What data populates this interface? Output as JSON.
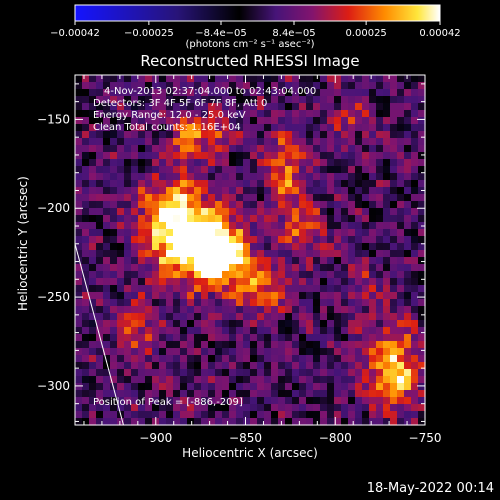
{
  "chart_data": {
    "type": "heatmap",
    "title": "Reconstructed RHESSI Image",
    "xlabel": "Heliocentric X (arcsec)",
    "ylabel": "Heliocentric Y (arcsec)",
    "xlim": [
      -945,
      -750
    ],
    "ylim": [
      -322,
      -125
    ],
    "xticks": [
      -900,
      -850,
      -800,
      -750
    ],
    "yticks": [
      -150,
      -200,
      -250,
      -300
    ],
    "colorbar": {
      "range": [
        -0.00042,
        0.00042
      ],
      "ticks": [
        "-0.00042",
        "-0.00025",
        "-8.4e-05",
        "8.4e-05",
        "0.00025",
        "0.00042"
      ],
      "units": "(photons cm⁻² s⁻¹ asec⁻²)"
    },
    "annotations": [
      "4-Nov-2013 02:37:04.000 to 02:43:04.000",
      "Detectors: 3F 4F 5F 6F 7F 8F, Att 0",
      "Energy Range: 12.0 - 25.0 keV",
      "Clean     Total counts: 1.16E+04",
      "Position of Peak = [-886,-209]"
    ],
    "peak": {
      "x": -886,
      "y": -209
    },
    "limb_line": [
      {
        "x": -945,
        "y": -220
      },
      {
        "x": -918,
        "y": -322
      }
    ],
    "sources": [
      {
        "x": -890,
        "y": -210,
        "amp": 1.0,
        "sx": 14,
        "sy": 18
      },
      {
        "x": -872,
        "y": -222,
        "amp": 0.85,
        "sx": 12,
        "sy": 14
      },
      {
        "x": -860,
        "y": -228,
        "amp": 0.7,
        "sx": 10,
        "sy": 12
      },
      {
        "x": -840,
        "y": -245,
        "amp": 0.55,
        "sx": 10,
        "sy": 10
      },
      {
        "x": -828,
        "y": -178,
        "amp": 0.65,
        "sx": 7,
        "sy": 14
      },
      {
        "x": -818,
        "y": -212,
        "amp": 0.5,
        "sx": 9,
        "sy": 10
      },
      {
        "x": -882,
        "y": -160,
        "amp": 0.6,
        "sx": 6,
        "sy": 10
      },
      {
        "x": -865,
        "y": -160,
        "amp": 0.45,
        "sx": 6,
        "sy": 8
      },
      {
        "x": -910,
        "y": -268,
        "amp": 0.45,
        "sx": 8,
        "sy": 10
      },
      {
        "x": -768,
        "y": -290,
        "amp": 0.9,
        "sx": 10,
        "sy": 16
      },
      {
        "x": -785,
        "y": -245,
        "amp": 0.3,
        "sx": 8,
        "sy": 8
      },
      {
        "x": -790,
        "y": -150,
        "amp": 0.35,
        "sx": 8,
        "sy": 8
      }
    ]
  },
  "footer": {
    "timestamp": "18-May-2022 00:14"
  }
}
